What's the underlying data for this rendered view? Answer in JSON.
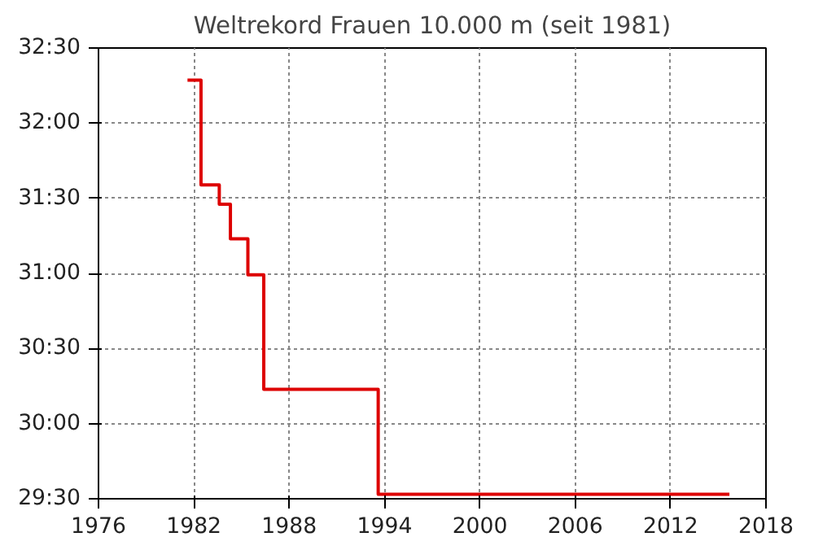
{
  "chart_data": {
    "type": "step",
    "title": "Weltrekord Frauen 10.000 m (seit 1981)",
    "x": [
      1981.6,
      1982.45,
      1983.6,
      1984.3,
      1985.4,
      1986.4,
      1993.6,
      2015.7
    ],
    "series": [
      {
        "color": "#dd0000",
        "values": [
          1937.2,
          1895.3,
          1887.6,
          1873.8,
          1859.4,
          1813.7,
          1771.8,
          1771.8
        ]
      }
    ],
    "xlim": [
      1976,
      2018
    ],
    "xticks": [
      1976,
      1982,
      1988,
      1994,
      2000,
      2006,
      2012,
      2018
    ],
    "ylim": [
      1770,
      1950
    ],
    "yticks": [
      {
        "value": 1770,
        "label": "29:30"
      },
      {
        "value": 1800,
        "label": "30:00"
      },
      {
        "value": 1830,
        "label": "30:30"
      },
      {
        "value": 1860,
        "label": "31:00"
      },
      {
        "value": 1890,
        "label": "31:30"
      },
      {
        "value": 1920,
        "label": "32:00"
      },
      {
        "value": 1950,
        "label": "32:30"
      }
    ],
    "grid": true,
    "line_style": "solid"
  }
}
